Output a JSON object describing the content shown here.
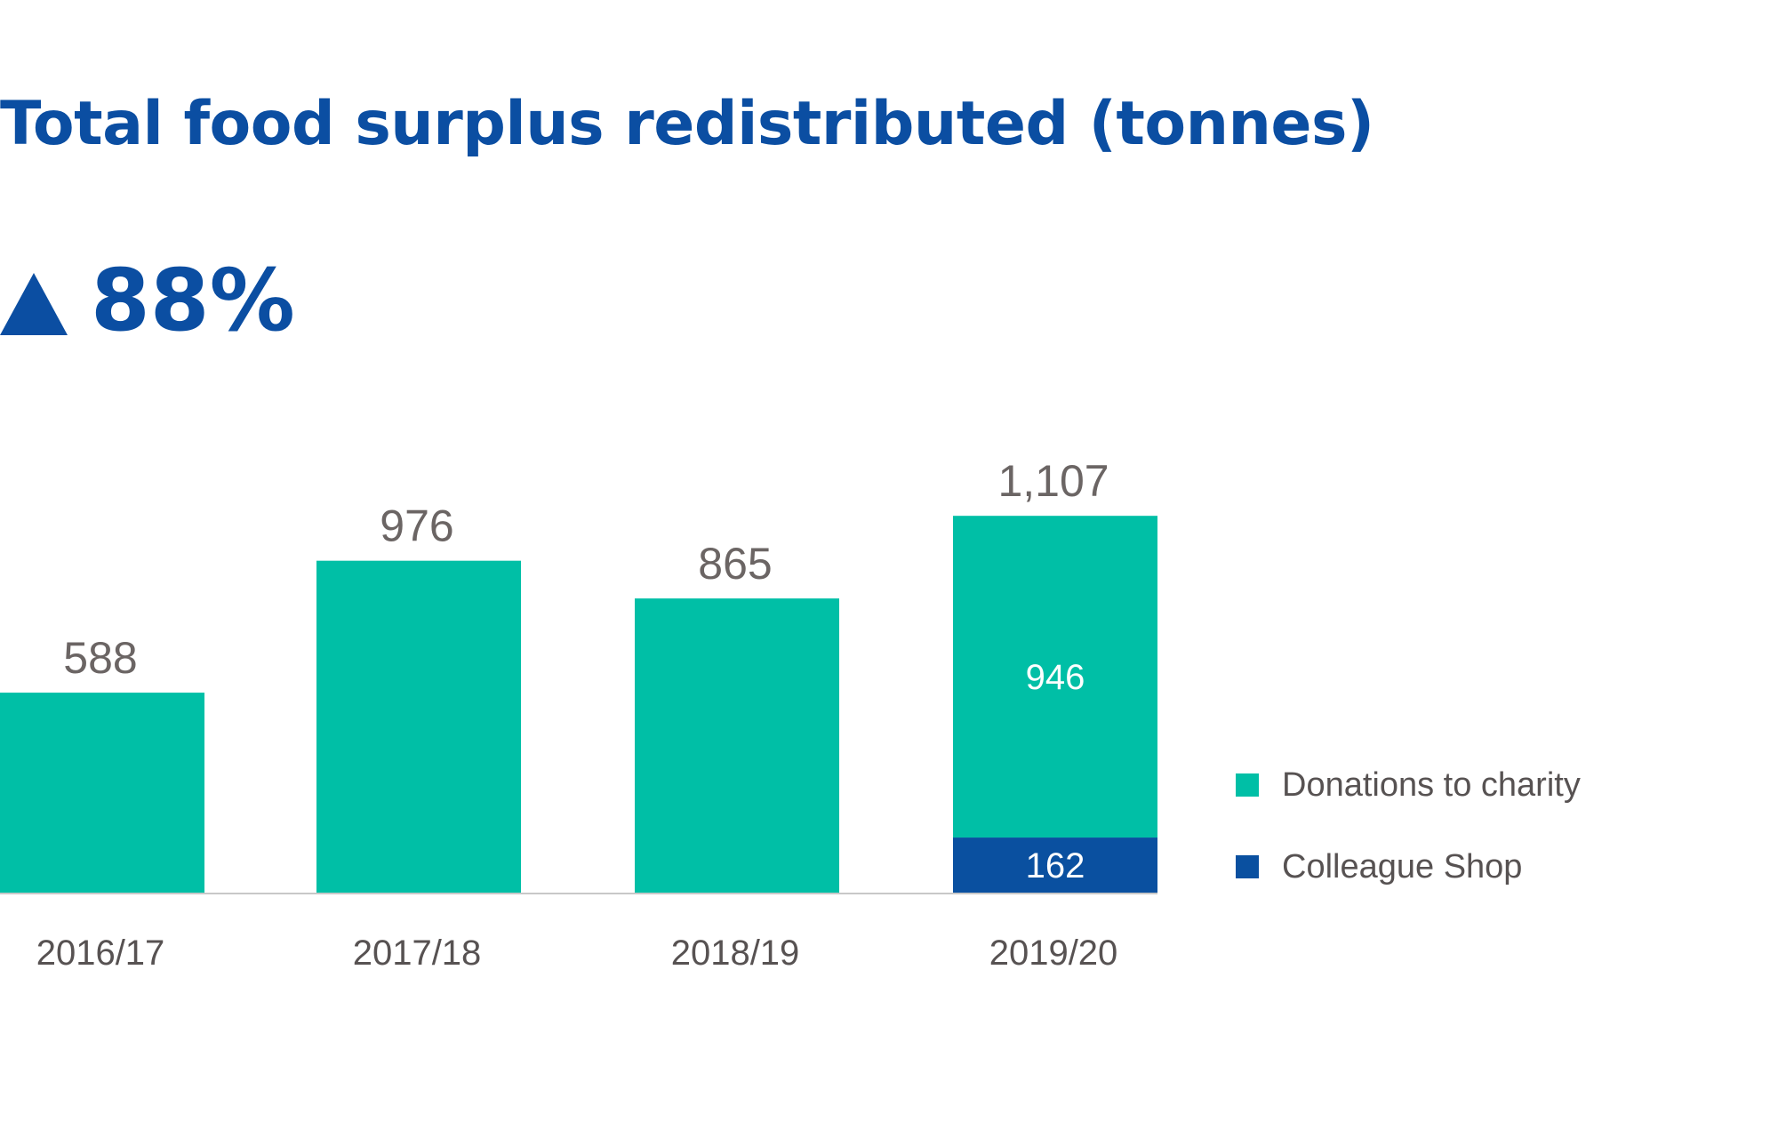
{
  "header": {
    "title": "Total food surplus redistributed (tonnes)",
    "change_value": "88%",
    "change_icon": "triangle-up-icon"
  },
  "colors": {
    "title": "#0b4ea2",
    "donations": "#00bfa6",
    "colleague_shop": "#0a50a0",
    "label_gray": "#6b6564"
  },
  "chart_data": {
    "type": "bar",
    "stacked": true,
    "categories": [
      "2016/17",
      "2017/18",
      "2018/19",
      "2019/20"
    ],
    "series": [
      {
        "name": "Colleague Shop",
        "values": [
          0,
          0,
          0,
          162
        ]
      },
      {
        "name": "Donations to charity",
        "values": [
          588,
          976,
          865,
          946
        ]
      }
    ],
    "totals": [
      "588",
      "976",
      "865",
      "1,107"
    ],
    "segment_labels": [
      {
        "category": "2019/20",
        "series": "Donations to charity",
        "label": "946"
      },
      {
        "category": "2019/20",
        "series": "Colleague Shop",
        "label": "162"
      }
    ],
    "ylim": [
      0,
      1200
    ],
    "grid": false,
    "legend_position": "bottom-right"
  },
  "legend": {
    "items": [
      {
        "label": "Donations to charity",
        "color": "#00bfa6"
      },
      {
        "label": "Colleague Shop",
        "color": "#0a50a0"
      }
    ]
  }
}
